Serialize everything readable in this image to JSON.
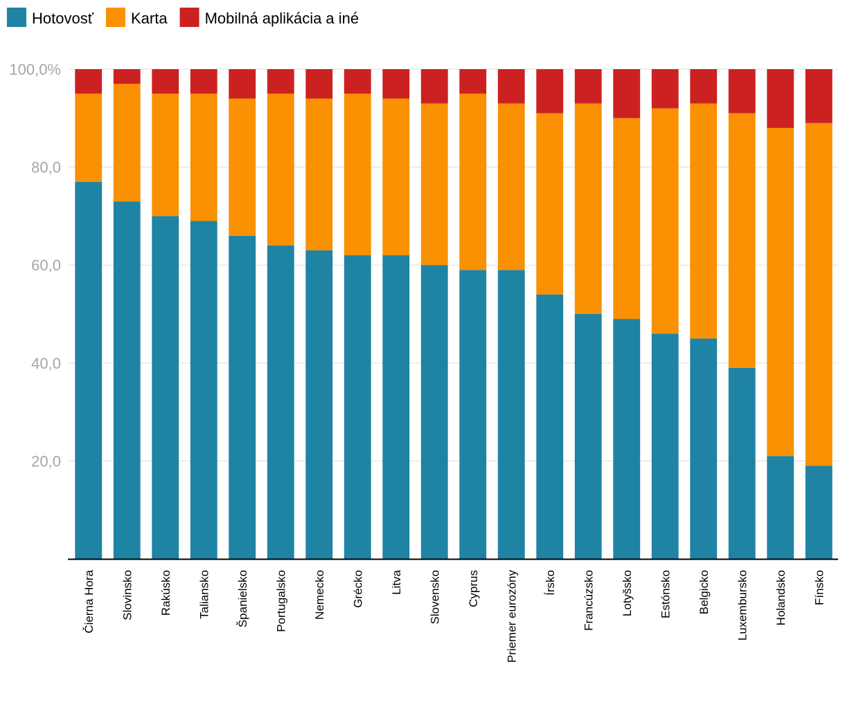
{
  "chart_data": {
    "type": "bar",
    "stacked": true,
    "title": "",
    "xlabel": "",
    "ylabel": "",
    "ylim": [
      0,
      100
    ],
    "yticks": [
      {
        "value": 20,
        "label": "20,0"
      },
      {
        "value": 40,
        "label": "40,0"
      },
      {
        "value": 60,
        "label": "60,0"
      },
      {
        "value": 80,
        "label": "80,0"
      },
      {
        "value": 100,
        "label": "100,0%"
      }
    ],
    "grid": true,
    "legend_position": "top-left",
    "categories": [
      "Čierna Hora",
      "Slovinsko",
      "Rakúsko",
      "Taliansko",
      "Španielsko",
      "Portugalsko",
      "Nemecko",
      "Grécko",
      "Litva",
      "Slovensko",
      "Cyprus",
      "Priemer eurozóny",
      "Írsko",
      "Francúzsko",
      "Lotyšsko",
      "Estónsko",
      "Belgicko",
      "Luxembursko",
      "Holandsko",
      "Fínsko"
    ],
    "series": [
      {
        "name": "Hotovosť",
        "color": "#1f83a4",
        "values": [
          77,
          73,
          70,
          69,
          66,
          64,
          63,
          62,
          62,
          60,
          59,
          59,
          54,
          50,
          49,
          46,
          45,
          39,
          21,
          19
        ]
      },
      {
        "name": "Karta",
        "color": "#f99102",
        "values": [
          18,
          24,
          25,
          26,
          28,
          31,
          31,
          33,
          32,
          33,
          36,
          34,
          37,
          43,
          41,
          46,
          48,
          52,
          67,
          70
        ]
      },
      {
        "name": "Mobilná aplikácia a iné",
        "color": "#cc2121",
        "values": [
          5,
          3,
          5,
          5,
          6,
          5,
          6,
          5,
          6,
          7,
          5,
          7,
          9,
          7,
          10,
          8,
          7,
          9,
          12,
          11
        ]
      }
    ]
  }
}
